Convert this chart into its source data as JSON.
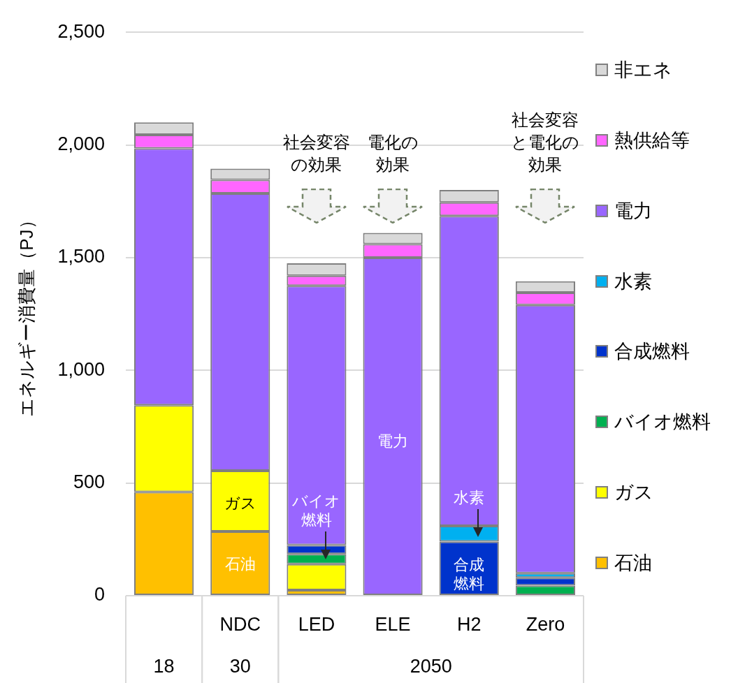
{
  "chart_data": {
    "type": "bar",
    "stacked": true,
    "ylabel": "エネルギー消費量（PJ）",
    "categories": [
      null,
      "NDC",
      "LED",
      "ELE",
      "H2",
      "Zero"
    ],
    "ylim": [
      0,
      2500
    ],
    "yticks": [
      0,
      500,
      {
        "value": 1000,
        "label": "1,000"
      },
      {
        "value": 1500,
        "label": "1,500"
      },
      {
        "value": 2000,
        "label": "2,000"
      },
      {
        "value": 2500,
        "label": "2,500"
      }
    ],
    "series": [
      {
        "name": "石油",
        "color": "#ffc000",
        "values": [
          460,
          285,
          25,
          null,
          null,
          null
        ]
      },
      {
        "name": "ガス",
        "color": "#ffff00",
        "values": [
          385,
          270,
          115,
          null,
          null,
          null
        ]
      },
      {
        "name": "バイオ燃料",
        "color": "#00b050",
        "values": [
          null,
          null,
          45,
          null,
          null,
          45
        ]
      },
      {
        "name": "合成燃料",
        "color": "#0033cc",
        "values": [
          null,
          null,
          40,
          null,
          240,
          35
        ]
      },
      {
        "name": "水素",
        "color": "#00b0f0",
        "values": [
          null,
          null,
          null,
          null,
          70,
          20
        ]
      },
      {
        "name": "電力",
        "color": "#9966ff",
        "values": [
          1140,
          1230,
          1150,
          1500,
          1375,
          1190
        ]
      },
      {
        "name": "熱供給等",
        "color": "#ff66ff",
        "values": [
          60,
          60,
          45,
          60,
          60,
          55
        ]
      },
      {
        "name": "非エネ",
        "color": "#d9d9d9",
        "values": [
          55,
          50,
          55,
          50,
          55,
          50
        ]
      }
    ],
    "annotations": [
      "社会変容の効果",
      "電化の効果",
      "社会変容と電化の効果",
      "電力",
      "18",
      "30",
      "2050",
      {
        "text": "ガス",
        "x": "NDC",
        "y": 555
      },
      {
        "text": "石油",
        "x": "NDC",
        "y": 285
      },
      {
        "text": "バイオ燃料",
        "x": "LED",
        "y": 160
      },
      {
        "text": "水素",
        "x": "H2",
        "y": 260
      },
      {
        "text": "合成燃料",
        "x": "H2",
        "y": 240
      }
    ],
    "grid": "y",
    "legend": "right"
  }
}
